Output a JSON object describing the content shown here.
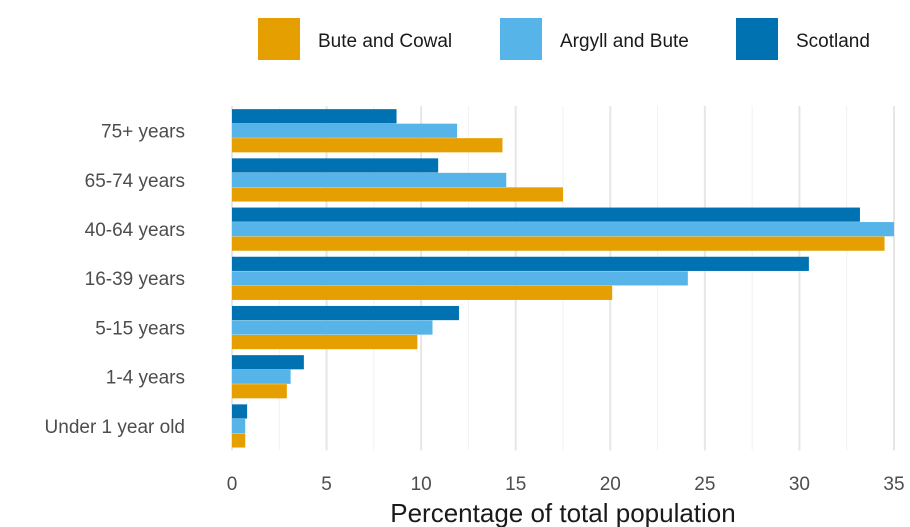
{
  "chart_data": {
    "type": "bar",
    "orientation": "horizontal",
    "categories": [
      "75+ years",
      "65-74 years",
      "40-64 years",
      "16-39 years",
      "5-15 years",
      "1-4 years",
      "Under 1 year old"
    ],
    "series": [
      {
        "name": "Scotland",
        "color": "#0072B2",
        "values": [
          8.7,
          10.9,
          33.2,
          30.5,
          12.0,
          3.8,
          0.8
        ]
      },
      {
        "name": "Argyll and Bute",
        "color": "#56B4E9",
        "values": [
          11.9,
          14.5,
          35.0,
          24.1,
          10.6,
          3.1,
          0.7
        ]
      },
      {
        "name": "Bute and Cowal",
        "color": "#E69F00",
        "values": [
          14.3,
          17.5,
          34.5,
          20.1,
          9.8,
          2.9,
          0.7
        ]
      }
    ],
    "legend_order": [
      "Bute and Cowal",
      "Argyll and Bute",
      "Scotland"
    ],
    "legend_position": "top-right",
    "xlabel": "Percentage of total population",
    "ylabel": "",
    "xlim": [
      0,
      35
    ],
    "xticks": [
      0,
      5,
      10,
      15,
      20,
      25,
      30,
      35
    ],
    "grid": "vertical major lines"
  }
}
